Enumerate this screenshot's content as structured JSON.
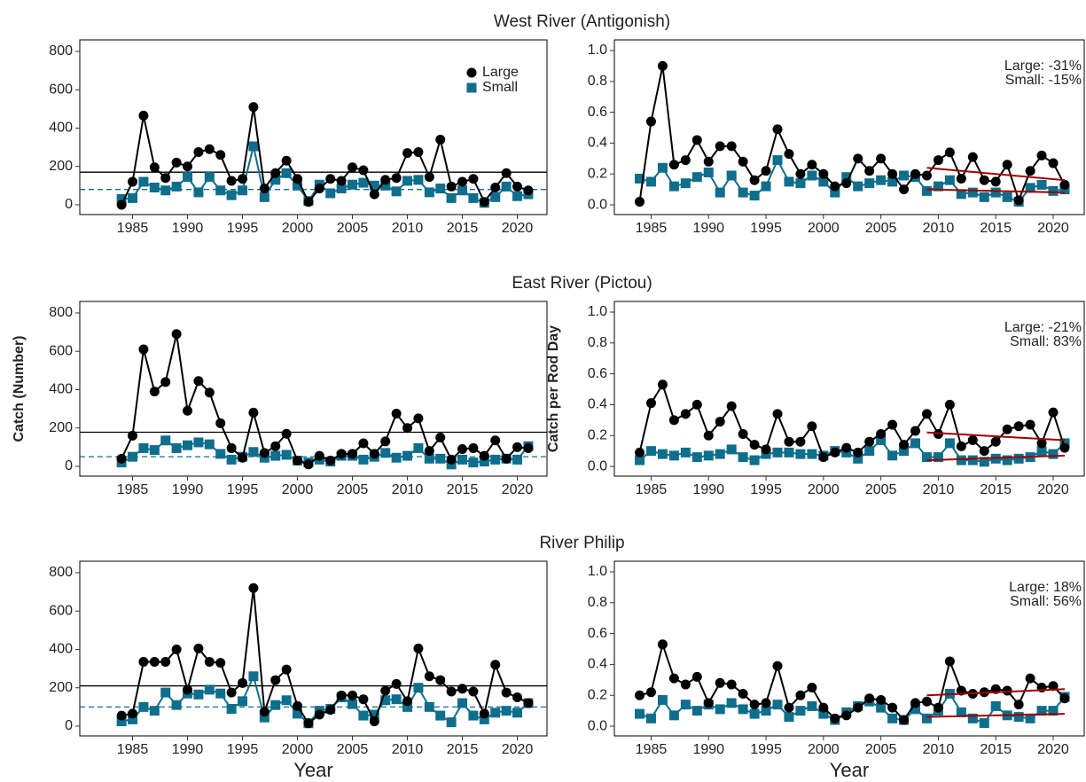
{
  "chart_data": [
    {
      "type": "line",
      "title": "West River (Antigonish)",
      "legend": "top right",
      "x": [
        1984,
        1985,
        1986,
        1987,
        1988,
        1989,
        1990,
        1991,
        1992,
        1993,
        1994,
        1995,
        1996,
        1997,
        1998,
        1999,
        2000,
        2001,
        2002,
        2003,
        2004,
        2005,
        2006,
        2007,
        2008,
        2009,
        2010,
        2011,
        2012,
        2013,
        2014,
        2015,
        2016,
        2017,
        2018,
        2019,
        2020,
        2021
      ],
      "series": [
        {
          "name": "Large",
          "color": "#000000",
          "marker": "circle",
          "values": [
            0,
            120,
            465,
            195,
            140,
            220,
            200,
            275,
            290,
            260,
            125,
            135,
            510,
            85,
            165,
            230,
            135,
            15,
            85,
            135,
            125,
            195,
            180,
            55,
            130,
            140,
            270,
            275,
            145,
            340,
            95,
            120,
            135,
            15,
            90,
            165,
            95,
            75
          ]
        },
        {
          "name": "Small",
          "color": "#0f6e8c",
          "marker": "square",
          "values": [
            30,
            35,
            120,
            90,
            75,
            95,
            145,
            65,
            145,
            75,
            50,
            75,
            305,
            40,
            130,
            165,
            100,
            20,
            105,
            60,
            85,
            105,
            115,
            100,
            100,
            70,
            125,
            130,
            65,
            85,
            35,
            75,
            35,
            10,
            40,
            95,
            45,
            55
          ]
        }
      ],
      "hlines": [
        {
          "value": 170,
          "color": "#000000",
          "dashed": false
        },
        {
          "value": 80,
          "color": "#0f6e8c",
          "dashed": true
        }
      ],
      "xlim": [
        1980.2,
        2022.7
      ],
      "xticks": [
        1985,
        1990,
        1995,
        2000,
        2005,
        2010,
        2015,
        2020
      ],
      "ylim": [
        -51,
        860
      ],
      "yticks": [
        0,
        200,
        400,
        600,
        800
      ]
    },
    {
      "type": "line",
      "annotations": [
        "Large: -31%",
        "Small: -15%"
      ],
      "x": [
        1984,
        1985,
        1986,
        1987,
        1988,
        1989,
        1990,
        1991,
        1992,
        1993,
        1994,
        1995,
        1996,
        1997,
        1998,
        1999,
        2000,
        2001,
        2002,
        2003,
        2004,
        2005,
        2006,
        2007,
        2008,
        2009,
        2010,
        2011,
        2012,
        2013,
        2014,
        2015,
        2016,
        2017,
        2018,
        2019,
        2020,
        2021
      ],
      "series": [
        {
          "color": "#000000",
          "marker": "circle",
          "values": [
            0.02,
            0.54,
            0.9,
            0.26,
            0.29,
            0.42,
            0.28,
            0.38,
            0.38,
            0.28,
            0.16,
            0.22,
            0.49,
            0.33,
            0.2,
            0.26,
            0.2,
            0.12,
            0.14,
            0.3,
            0.22,
            0.3,
            0.2,
            0.1,
            0.2,
            0.19,
            0.29,
            0.34,
            0.17,
            0.31,
            0.16,
            0.15,
            0.26,
            0.03,
            0.22,
            0.32,
            0.27,
            0.13
          ]
        },
        {
          "color": "#0f6e8c",
          "marker": "square",
          "values": [
            0.17,
            0.15,
            0.24,
            0.12,
            0.14,
            0.18,
            0.21,
            0.08,
            0.19,
            0.08,
            0.06,
            0.12,
            0.29,
            0.15,
            0.14,
            0.19,
            0.15,
            0.08,
            0.18,
            0.12,
            0.14,
            0.16,
            0.15,
            0.19,
            0.18,
            0.09,
            0.12,
            0.16,
            0.07,
            0.08,
            0.05,
            0.08,
            0.05,
            0.02,
            0.11,
            0.13,
            0.09,
            0.1
          ]
        }
      ],
      "trends": [
        {
          "x": [
            2009,
            2021
          ],
          "values": [
            0.24,
            0.16
          ],
          "color": "#a00000"
        },
        {
          "x": [
            2009,
            2021
          ],
          "values": [
            0.1,
            0.08
          ],
          "color": "#a00000"
        }
      ],
      "xlim": [
        1981.8,
        2022.7
      ],
      "xticks": [
        1985,
        1990,
        1995,
        2000,
        2005,
        2010,
        2015,
        2020
      ],
      "ylim": [
        -0.063,
        1.069
      ],
      "yticks": [
        {
          "value": 0,
          "label": "0.0"
        },
        0.2,
        0.4,
        0.6,
        0.8,
        {
          "value": 1,
          "label": "1.0"
        }
      ]
    },
    {
      "type": "line",
      "title": "East River (Pictou)",
      "ylabel": "Catch (Number)",
      "x": [
        1984,
        1985,
        1986,
        1987,
        1988,
        1989,
        1990,
        1991,
        1992,
        1993,
        1994,
        1995,
        1996,
        1997,
        1998,
        1999,
        2000,
        2001,
        2002,
        2003,
        2004,
        2005,
        2006,
        2007,
        2008,
        2009,
        2010,
        2011,
        2012,
        2013,
        2014,
        2015,
        2016,
        2017,
        2018,
        2019,
        2020,
        2021
      ],
      "series": [
        {
          "color": "#000000",
          "marker": "circle",
          "values": [
            40,
            160,
            610,
            390,
            440,
            690,
            290,
            445,
            385,
            225,
            95,
            45,
            280,
            70,
            105,
            170,
            30,
            10,
            55,
            30,
            65,
            65,
            120,
            65,
            130,
            275,
            200,
            250,
            80,
            150,
            35,
            90,
            95,
            55,
            135,
            40,
            100,
            95
          ]
        },
        {
          "color": "#0f6e8c",
          "marker": "square",
          "values": [
            20,
            50,
            95,
            85,
            135,
            95,
            110,
            125,
            115,
            65,
            35,
            50,
            75,
            45,
            55,
            60,
            30,
            20,
            35,
            25,
            55,
            55,
            35,
            50,
            70,
            45,
            55,
            95,
            40,
            40,
            10,
            35,
            20,
            25,
            35,
            40,
            35,
            105
          ]
        }
      ],
      "hlines": [
        {
          "value": 178,
          "color": "#000000",
          "dashed": false
        },
        {
          "value": 50,
          "color": "#0f6e8c",
          "dashed": true
        }
      ],
      "xlim": [
        1980.2,
        2022.7
      ],
      "xticks": [
        1985,
        1990,
        1995,
        2000,
        2005,
        2010,
        2015,
        2020
      ],
      "ylim": [
        -51,
        860
      ],
      "yticks": [
        0,
        200,
        400,
        600,
        800
      ]
    },
    {
      "type": "line",
      "ylabel": "Catch per Rod Day",
      "annotations": [
        "Large: -21%",
        "Small: 83%"
      ],
      "x": [
        1984,
        1985,
        1986,
        1987,
        1988,
        1989,
        1990,
        1991,
        1992,
        1993,
        1994,
        1995,
        1996,
        1997,
        1998,
        1999,
        2000,
        2001,
        2002,
        2003,
        2004,
        2005,
        2006,
        2007,
        2008,
        2009,
        2010,
        2011,
        2012,
        2013,
        2014,
        2015,
        2016,
        2017,
        2018,
        2019,
        2020,
        2021
      ],
      "series": [
        {
          "color": "#000000",
          "marker": "circle",
          "values": [
            0.09,
            0.41,
            0.53,
            0.3,
            0.34,
            0.4,
            0.2,
            0.29,
            0.39,
            0.21,
            0.14,
            0.11,
            0.34,
            0.16,
            0.16,
            0.26,
            0.06,
            0.09,
            0.12,
            0.09,
            0.16,
            0.21,
            0.27,
            0.14,
            0.23,
            0.34,
            0.21,
            0.4,
            0.13,
            0.17,
            0.1,
            0.16,
            0.24,
            0.26,
            0.27,
            0.15,
            0.35,
            0.12
          ]
        },
        {
          "color": "#0f6e8c",
          "marker": "square",
          "values": [
            0.04,
            0.1,
            0.08,
            0.07,
            0.09,
            0.06,
            0.07,
            0.08,
            0.11,
            0.06,
            0.04,
            0.08,
            0.09,
            0.09,
            0.08,
            0.08,
            0.07,
            0.1,
            0.09,
            0.05,
            0.1,
            0.17,
            0.07,
            0.1,
            0.15,
            0.06,
            0.06,
            0.15,
            0.04,
            0.04,
            0.03,
            0.05,
            0.04,
            0.05,
            0.06,
            0.1,
            0.08,
            0.15
          ]
        }
      ],
      "trends": [
        {
          "x": [
            2009,
            2021
          ],
          "values": [
            0.22,
            0.17
          ],
          "color": "#a00000"
        },
        {
          "x": [
            2009,
            2021
          ],
          "values": [
            0.04,
            0.07
          ],
          "color": "#a00000"
        }
      ],
      "xlim": [
        1981.8,
        2022.7
      ],
      "xticks": [
        1985,
        1990,
        1995,
        2000,
        2005,
        2010,
        2015,
        2020
      ],
      "ylim": [
        -0.063,
        1.069
      ],
      "yticks": [
        {
          "value": 0,
          "label": "0.0"
        },
        0.2,
        0.4,
        0.6,
        0.8,
        {
          "value": 1,
          "label": "1.0"
        }
      ]
    },
    {
      "type": "line",
      "title": "River Philip",
      "xlabel": "Year",
      "x": [
        1984,
        1985,
        1986,
        1987,
        1988,
        1989,
        1990,
        1991,
        1992,
        1993,
        1994,
        1995,
        1996,
        1997,
        1998,
        1999,
        2000,
        2001,
        2002,
        2003,
        2004,
        2005,
        2006,
        2007,
        2008,
        2009,
        2010,
        2011,
        2012,
        2013,
        2014,
        2015,
        2016,
        2017,
        2018,
        2019,
        2020,
        2021
      ],
      "series": [
        {
          "color": "#000000",
          "marker": "circle",
          "values": [
            55,
            65,
            335,
            335,
            335,
            400,
            190,
            405,
            335,
            330,
            175,
            225,
            720,
            75,
            240,
            295,
            105,
            15,
            60,
            85,
            160,
            160,
            140,
            25,
            185,
            220,
            130,
            405,
            260,
            240,
            180,
            195,
            180,
            65,
            320,
            175,
            150,
            120
          ]
        },
        {
          "color": "#0f6e8c",
          "marker": "square",
          "values": [
            25,
            35,
            100,
            80,
            175,
            110,
            170,
            165,
            190,
            170,
            90,
            130,
            260,
            45,
            110,
            135,
            65,
            15,
            80,
            90,
            150,
            115,
            55,
            60,
            135,
            140,
            100,
            200,
            100,
            55,
            20,
            120,
            55,
            35,
            70,
            80,
            70,
            120
          ]
        }
      ],
      "hlines": [
        {
          "value": 210,
          "color": "#000000",
          "dashed": false
        },
        {
          "value": 100,
          "color": "#0f6e8c",
          "dashed": true
        }
      ],
      "xlim": [
        1980.2,
        2022.7
      ],
      "xticks": [
        1985,
        1990,
        1995,
        2000,
        2005,
        2010,
        2015,
        2020
      ],
      "ylim": [
        -51,
        860
      ],
      "yticks": [
        0,
        200,
        400,
        600,
        800
      ]
    },
    {
      "type": "line",
      "xlabel": "Year",
      "annotations": [
        "Large: 18%",
        "Small: 56%"
      ],
      "x": [
        1984,
        1985,
        1986,
        1987,
        1988,
        1989,
        1990,
        1991,
        1992,
        1993,
        1994,
        1995,
        1996,
        1997,
        1998,
        1999,
        2000,
        2001,
        2002,
        2003,
        2004,
        2005,
        2006,
        2007,
        2008,
        2009,
        2010,
        2011,
        2012,
        2013,
        2014,
        2015,
        2016,
        2017,
        2018,
        2019,
        2020,
        2021
      ],
      "series": [
        {
          "color": "#000000",
          "marker": "circle",
          "values": [
            0.2,
            0.22,
            0.53,
            0.31,
            0.27,
            0.32,
            0.15,
            0.28,
            0.27,
            0.21,
            0.14,
            0.15,
            0.39,
            0.12,
            0.2,
            0.25,
            0.12,
            0.05,
            0.07,
            0.12,
            0.18,
            0.17,
            0.12,
            0.04,
            0.15,
            0.16,
            0.12,
            0.42,
            0.23,
            0.21,
            0.22,
            0.24,
            0.23,
            0.14,
            0.31,
            0.25,
            0.26,
            0.18
          ]
        },
        {
          "color": "#0f6e8c",
          "marker": "square",
          "values": [
            0.08,
            0.05,
            0.17,
            0.07,
            0.14,
            0.1,
            0.14,
            0.11,
            0.15,
            0.11,
            0.08,
            0.1,
            0.14,
            0.06,
            0.1,
            0.13,
            0.08,
            0.04,
            0.09,
            0.13,
            0.16,
            0.12,
            0.05,
            0.04,
            0.11,
            0.05,
            0.1,
            0.21,
            0.09,
            0.05,
            0.02,
            0.13,
            0.07,
            0.06,
            0.05,
            0.1,
            0.1,
            0.19
          ]
        }
      ],
      "trends": [
        {
          "x": [
            2009,
            2021
          ],
          "values": [
            0.2,
            0.24
          ],
          "color": "#a00000"
        },
        {
          "x": [
            2009,
            2021
          ],
          "values": [
            0.06,
            0.08
          ],
          "color": "#a00000"
        }
      ],
      "xlim": [
        1981.8,
        2022.7
      ],
      "xticks": [
        1985,
        1990,
        1995,
        2000,
        2005,
        2010,
        2015,
        2020
      ],
      "ylim": [
        -0.063,
        1.069
      ],
      "yticks": [
        {
          "value": 0,
          "label": "0.0"
        },
        0.2,
        0.4,
        0.6,
        0.8,
        {
          "value": 1,
          "label": "1.0"
        }
      ]
    }
  ]
}
